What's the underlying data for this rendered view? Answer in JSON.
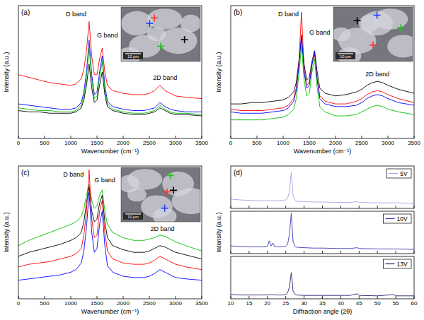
{
  "chart_data": [
    {
      "type": "line",
      "panel_label": "(a)",
      "xlabel": "Wavenumber (cm⁻¹)",
      "ylabel": "Intensity (a.u.)",
      "inset_scale_label": "10 μm",
      "annotations": [
        {
          "text": "D band",
          "x": 1100,
          "y": 92
        },
        {
          "text": "G band",
          "x": 1700,
          "y": 76
        },
        {
          "text": "2D band",
          "x": 2800,
          "y": 44
        }
      ],
      "x": [
        0,
        200,
        400,
        600,
        800,
        1000,
        1100,
        1200,
        1250,
        1300,
        1350,
        1400,
        1450,
        1500,
        1550,
        1600,
        1650,
        1700,
        1800,
        2000,
        2200,
        2400,
        2500,
        2600,
        2700,
        2800,
        2900,
        3000,
        3200,
        3500
      ],
      "series": [
        {
          "color": "#ff0000",
          "values": [
            48,
            46,
            44,
            42,
            41,
            40,
            41,
            45,
            52,
            66,
            88,
            62,
            48,
            48,
            60,
            68,
            50,
            40,
            36,
            34,
            33,
            33,
            34,
            36,
            40,
            36,
            34,
            32,
            31,
            30
          ]
        },
        {
          "color": "#0000ff",
          "values": [
            26,
            25,
            24,
            23,
            22,
            22,
            23,
            27,
            35,
            50,
            74,
            48,
            33,
            35,
            50,
            62,
            40,
            28,
            24,
            22,
            21,
            21,
            22,
            23,
            27,
            24,
            22,
            21,
            20,
            20
          ]
        },
        {
          "color": "#00c000",
          "values": [
            23,
            22,
            21,
            21,
            20,
            20,
            21,
            25,
            32,
            46,
            68,
            44,
            30,
            32,
            46,
            58,
            37,
            26,
            22,
            20,
            19,
            19,
            20,
            21,
            25,
            22,
            20,
            19,
            19,
            18
          ]
        },
        {
          "color": "#000000",
          "values": [
            21,
            20,
            20,
            19,
            19,
            19,
            20,
            23,
            29,
            40,
            56,
            38,
            27,
            29,
            40,
            50,
            33,
            24,
            21,
            19,
            18,
            18,
            19,
            20,
            23,
            21,
            19,
            18,
            18,
            17
          ]
        }
      ],
      "xlim": [
        0,
        3500
      ],
      "xticks": [
        0,
        500,
        1000,
        1500,
        2000,
        2500,
        3000,
        3500
      ],
      "ylim": [
        0,
        100
      ],
      "tick_labels": "x"
    },
    {
      "type": "line",
      "panel_label": "(b)",
      "xlabel": "Wavenumber (cm⁻¹)",
      "ylabel": "Intensity (a.u.)",
      "inset_scale_label": "10 μm",
      "annotations": [
        {
          "text": "D band",
          "x": 1100,
          "y": 92
        },
        {
          "text": "G band",
          "x": 1700,
          "y": 78
        },
        {
          "text": "2D band",
          "x": 2800,
          "y": 47
        }
      ],
      "x": [
        0,
        200,
        400,
        600,
        800,
        1000,
        1100,
        1200,
        1250,
        1300,
        1350,
        1400,
        1450,
        1500,
        1550,
        1600,
        1650,
        1700,
        1800,
        2000,
        2200,
        2400,
        2500,
        2600,
        2700,
        2800,
        2900,
        3000,
        3200,
        3500
      ],
      "series": [
        {
          "color": "#000000",
          "values": [
            26,
            26,
            27,
            27,
            28,
            29,
            31,
            35,
            42,
            58,
            76,
            56,
            44,
            46,
            58,
            66,
            50,
            38,
            34,
            32,
            33,
            35,
            37,
            40,
            42,
            43,
            42,
            40,
            37,
            34
          ]
        },
        {
          "color": "#ff0000",
          "values": [
            22,
            21,
            21,
            21,
            22,
            23,
            25,
            30,
            38,
            56,
            95,
            52,
            40,
            42,
            56,
            64,
            45,
            32,
            28,
            26,
            26,
            28,
            30,
            33,
            35,
            36,
            35,
            33,
            30,
            27
          ]
        },
        {
          "color": "#0000ff",
          "values": [
            20,
            19,
            19,
            19,
            20,
            21,
            23,
            28,
            36,
            54,
            78,
            50,
            38,
            40,
            55,
            66,
            44,
            30,
            26,
            24,
            24,
            25,
            27,
            30,
            32,
            33,
            32,
            30,
            27,
            25
          ]
        },
        {
          "color": "#00c000",
          "values": [
            14,
            14,
            14,
            14,
            15,
            16,
            18,
            22,
            30,
            48,
            70,
            44,
            32,
            34,
            50,
            60,
            38,
            24,
            20,
            17,
            17,
            18,
            20,
            22,
            24,
            25,
            24,
            22,
            20,
            18
          ]
        }
      ],
      "xlim": [
        0,
        3500
      ],
      "xticks": [
        0,
        500,
        1000,
        1500,
        2000,
        2500,
        3000,
        3500
      ],
      "ylim": [
        0,
        100
      ],
      "tick_labels": "x"
    },
    {
      "type": "line",
      "panel_label": "(c)",
      "xlabel": "Wavenumber (cm⁻¹)",
      "ylabel": "Intensity (a.u.)",
      "inset_scale_label": "10 μm",
      "annotations": [
        {
          "text": "D band",
          "x": 1050,
          "y": 92
        },
        {
          "text": "G band",
          "x": 1650,
          "y": 88
        },
        {
          "text": "2D band",
          "x": 2750,
          "y": 51
        }
      ],
      "x": [
        0,
        200,
        400,
        600,
        800,
        1000,
        1100,
        1200,
        1250,
        1300,
        1350,
        1400,
        1450,
        1500,
        1550,
        1600,
        1650,
        1700,
        1800,
        2000,
        2200,
        2400,
        2500,
        2600,
        2700,
        2800,
        2900,
        3000,
        3200,
        3500
      ],
      "series": [
        {
          "color": "#00c000",
          "values": [
            40,
            44,
            47,
            50,
            53,
            56,
            58,
            62,
            68,
            78,
            86,
            74,
            68,
            70,
            78,
            82,
            66,
            56,
            50,
            46,
            44,
            44,
            45,
            46,
            48,
            47,
            45,
            43,
            40,
            36
          ]
        },
        {
          "color": "#000000",
          "values": [
            32,
            35,
            37,
            39,
            41,
            44,
            46,
            50,
            58,
            72,
            84,
            66,
            58,
            60,
            72,
            78,
            58,
            46,
            40,
            37,
            35,
            35,
            36,
            38,
            40,
            39,
            37,
            35,
            33,
            30
          ]
        },
        {
          "color": "#ff0000",
          "values": [
            24,
            26,
            27,
            28,
            30,
            32,
            34,
            38,
            48,
            66,
            97,
            60,
            46,
            48,
            66,
            74,
            50,
            36,
            30,
            27,
            26,
            26,
            27,
            29,
            32,
            30,
            28,
            26,
            24,
            22
          ]
        },
        {
          "color": "#0000ff",
          "values": [
            14,
            15,
            16,
            17,
            18,
            20,
            22,
            27,
            36,
            54,
            80,
            50,
            35,
            38,
            56,
            66,
            40,
            25,
            20,
            17,
            16,
            16,
            17,
            19,
            22,
            20,
            18,
            16,
            15,
            14
          ]
        }
      ],
      "xlim": [
        0,
        3500
      ],
      "xticks": [
        0,
        500,
        1000,
        1500,
        2000,
        2500,
        3000,
        3500
      ],
      "ylim": [
        0,
        100
      ],
      "tick_labels": "x"
    },
    {
      "type": "line",
      "panel_label": "(d)",
      "xlabel": "Diffraction angle (2θ)",
      "ylabel": "Intensity (a.u.)",
      "x": [
        10,
        12.5,
        15,
        17.5,
        19,
        20,
        20.5,
        21,
        21.5,
        22,
        23,
        24,
        25,
        25.5,
        26,
        26.5,
        27,
        27.5,
        28,
        30,
        32.5,
        35,
        40,
        42.5,
        44.5,
        45,
        50,
        54.5,
        55,
        60
      ],
      "series": [
        {
          "name": "5V",
          "color": "#a4a4e6",
          "values": [
            22,
            20,
            19,
            18,
            18,
            18,
            19,
            18,
            19,
            18,
            18,
            19,
            20,
            24,
            40,
            85,
            30,
            20,
            17,
            16,
            15,
            15,
            14,
            14,
            16,
            14,
            13,
            13,
            13,
            12
          ]
        },
        {
          "name": "10V",
          "color": "#3838b8",
          "values": [
            18,
            17,
            16,
            16,
            16,
            17,
            30,
            18,
            25,
            16,
            16,
            16,
            17,
            22,
            45,
            95,
            28,
            18,
            15,
            14,
            13,
            13,
            12,
            12,
            14,
            12,
            11,
            11,
            11,
            10
          ]
        },
        {
          "name": "13V",
          "color": "#23236e",
          "values": [
            10,
            9,
            9,
            9,
            9,
            9,
            10,
            9,
            10,
            9,
            9,
            9,
            10,
            14,
            28,
            62,
            18,
            11,
            9,
            8,
            8,
            8,
            8,
            8,
            12,
            8,
            7,
            10,
            7,
            7
          ]
        }
      ],
      "xlim": [
        10,
        60
      ],
      "xticks": [
        10,
        15,
        20,
        25,
        30,
        35,
        40,
        45,
        50,
        55,
        60
      ],
      "ylim": [
        0,
        100
      ],
      "tick_labels": "x",
      "legend": "top-right"
    }
  ]
}
